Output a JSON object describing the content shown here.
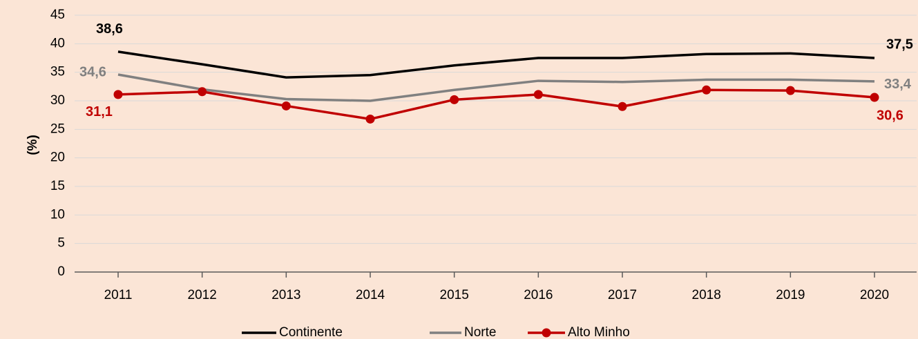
{
  "chart_data": {
    "type": "line",
    "y_label": "(%)",
    "categories": [
      "2011",
      "2012",
      "2013",
      "2014",
      "2015",
      "2016",
      "2017",
      "2018",
      "2019",
      "2020"
    ],
    "series": [
      {
        "name": "Continente",
        "color": "#000000",
        "marker": false,
        "values": [
          38.6,
          36.4,
          34.1,
          34.5,
          36.2,
          37.5,
          37.5,
          38.2,
          38.3,
          37.5
        ],
        "value_labels": [
          "38,6",
          null,
          null,
          null,
          null,
          null,
          null,
          null,
          null,
          "37,5"
        ]
      },
      {
        "name": "Norte",
        "color": "#808080",
        "marker": false,
        "values": [
          34.6,
          32.0,
          30.3,
          30.0,
          31.9,
          33.5,
          33.3,
          33.7,
          33.7,
          33.4
        ],
        "value_labels": [
          "34,6",
          null,
          null,
          null,
          null,
          null,
          null,
          null,
          null,
          "33,4"
        ]
      },
      {
        "name": "Alto Minho",
        "color": "#c00000",
        "marker": true,
        "values": [
          31.1,
          31.6,
          29.1,
          26.8,
          30.2,
          31.1,
          29.0,
          31.9,
          31.8,
          30.6
        ],
        "value_labels": [
          "31,1",
          null,
          null,
          null,
          null,
          null,
          null,
          null,
          null,
          "30,6"
        ]
      }
    ],
    "ylim": [
      0,
      45
    ],
    "yticks": [
      0,
      5,
      10,
      15,
      20,
      25,
      30,
      35,
      40,
      45
    ],
    "grid": true,
    "legend": "bottom"
  }
}
